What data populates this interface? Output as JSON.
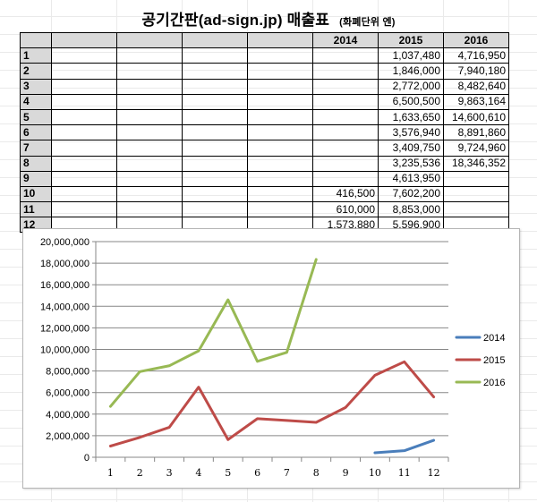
{
  "title": "공기간판(ad-sign.jp) 매출표",
  "unit_note": "(화폐단위 엔)",
  "table": {
    "headers": [
      "",
      "",
      "",
      "",
      "",
      "2014",
      "2015",
      "2016"
    ],
    "rows": [
      {
        "label": "1",
        "v2014": "",
        "v2015": "1,037,480",
        "v2016": "4,716,950"
      },
      {
        "label": "2",
        "v2014": "",
        "v2015": "1,846,000",
        "v2016": "7,940,180"
      },
      {
        "label": "3",
        "v2014": "",
        "v2015": "2,772,000",
        "v2016": "8,482,640"
      },
      {
        "label": "4",
        "v2014": "",
        "v2015": "6,500,500",
        "v2016": "9,863,164"
      },
      {
        "label": "5",
        "v2014": "",
        "v2015": "1,633,650",
        "v2016": "14,600,610"
      },
      {
        "label": "6",
        "v2014": "",
        "v2015": "3,576,940",
        "v2016": "8,891,860"
      },
      {
        "label": "7",
        "v2014": "",
        "v2015": "3,409,750",
        "v2016": "9,724,960"
      },
      {
        "label": "8",
        "v2014": "",
        "v2015": "3,235,536",
        "v2016": "18,346,352"
      },
      {
        "label": "9",
        "v2014": "",
        "v2015": "4,613,950",
        "v2016": ""
      },
      {
        "label": "10",
        "v2014": "416,500",
        "v2015": "7,602,200",
        "v2016": ""
      },
      {
        "label": "11",
        "v2014": "610,000",
        "v2015": "8,853,000",
        "v2016": ""
      },
      {
        "label": "12",
        "v2014": "1,573,880",
        "v2015": "5,596,900",
        "v2016": ""
      }
    ]
  },
  "chart_data": {
    "type": "line",
    "categories": [
      "1",
      "2",
      "3",
      "4",
      "5",
      "6",
      "7",
      "8",
      "9",
      "10",
      "11",
      "12"
    ],
    "ylim": [
      0,
      20000000
    ],
    "yticks": [
      0,
      2000000,
      4000000,
      6000000,
      8000000,
      10000000,
      12000000,
      14000000,
      16000000,
      18000000,
      20000000
    ],
    "ytick_labels": [
      "0",
      "2,000,000",
      "4,000,000",
      "6,000,000",
      "8,000,000",
      "10,000,000",
      "12,000,000",
      "14,000,000",
      "16,000,000",
      "18,000,000",
      "20,000,000"
    ],
    "grid": true,
    "legend_position": "right",
    "series": [
      {
        "name": "2014",
        "color": "#4a7ebb",
        "values": [
          null,
          null,
          null,
          null,
          null,
          null,
          null,
          null,
          null,
          416500,
          610000,
          1573880
        ]
      },
      {
        "name": "2015",
        "color": "#be4b48",
        "values": [
          1037480,
          1846000,
          2772000,
          6500500,
          1633650,
          3576940,
          3409750,
          3235536,
          4613950,
          7602200,
          8853000,
          5596900
        ]
      },
      {
        "name": "2016",
        "color": "#98b954",
        "values": [
          4716950,
          7940180,
          8482640,
          9863164,
          14600610,
          8891860,
          9724960,
          18346352,
          null,
          null,
          null,
          null
        ]
      }
    ]
  }
}
